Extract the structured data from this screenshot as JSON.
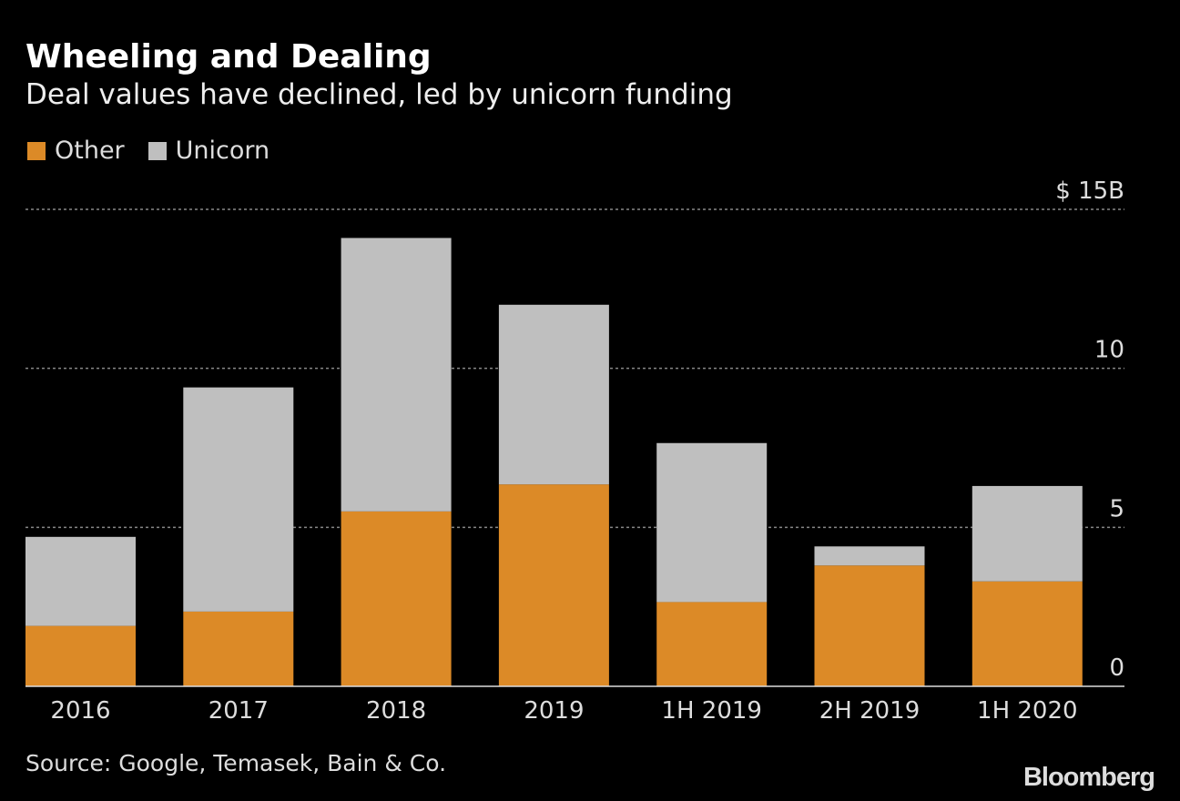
{
  "chart_data": {
    "type": "bar",
    "stacked": true,
    "title": "Wheeling and Dealing",
    "subtitle": "Deal values have declined, led by unicorn funding",
    "categories": [
      "2016",
      "2017",
      "2018",
      "2019",
      "1H 2019",
      "2H 2019",
      "1H 2020"
    ],
    "series": [
      {
        "name": "Other",
        "color": "#DC8A27",
        "values": [
          1.9,
          2.35,
          5.5,
          6.35,
          2.65,
          3.8,
          3.3
        ]
      },
      {
        "name": "Unicorn",
        "color": "#BFBFBF",
        "values": [
          2.8,
          7.05,
          8.6,
          5.65,
          5.0,
          0.6,
          3.0
        ]
      }
    ],
    "ylim": [
      0,
      15
    ],
    "yticks": [
      0,
      5,
      10,
      15
    ],
    "ytick_labels": [
      "0",
      "5",
      "10",
      "$ 15B"
    ],
    "y_axis_position": "right",
    "grid": true,
    "legend_position": "top-left",
    "source": "Source: Google, Temasek, Bain & Co.",
    "logo": "Bloomberg"
  }
}
